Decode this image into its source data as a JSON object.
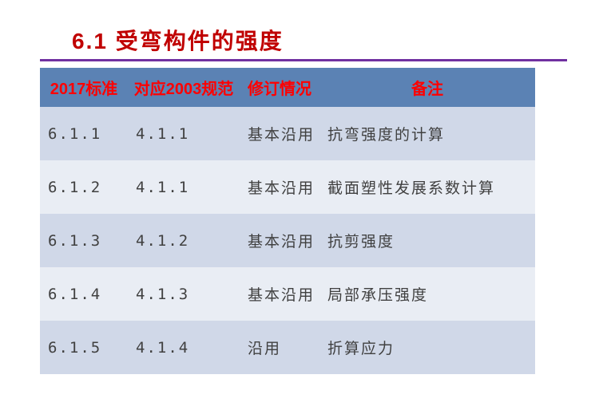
{
  "title": {
    "text": "6.1 受弯构件的强度",
    "color": "#c00000",
    "divider_color": "#7030a0"
  },
  "table": {
    "header_bg": "#5b82b4",
    "header_color": "#ff0000",
    "row_bg_a": "#d0d8e8",
    "row_bg_b": "#e9edf4",
    "cell_color": "#404040",
    "columns": [
      "2017标准",
      "对应2003规范",
      "修订情况",
      "备注"
    ],
    "rows": [
      [
        "6.1.1",
        "4.1.1",
        "基本沿用",
        "抗弯强度的计算"
      ],
      [
        "6.1.2",
        "4.1.1",
        "基本沿用",
        "截面塑性发展系数计算"
      ],
      [
        "6.1.3",
        "4.1.2",
        "基本沿用",
        "抗剪强度"
      ],
      [
        "6.1.4",
        "4.1.3",
        "基本沿用",
        "局部承压强度"
      ],
      [
        "6.1.5",
        "4.1.4",
        "沿用",
        "折算应力"
      ]
    ]
  }
}
